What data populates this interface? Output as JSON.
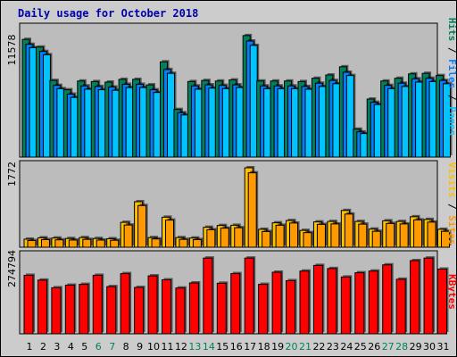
{
  "title": "Daily usage for October 2018",
  "colors": {
    "background": "#cccccc",
    "plot": "#bcbcbc",
    "title": "#0000aa",
    "hits": "#00805c",
    "files": "#0080ff",
    "pages": "#00c4ff",
    "visits": "#ff9900",
    "sites": "#ffc000",
    "kbytes": "#ff0000",
    "weekend_label": "#00805c",
    "weekday_label": "#000000"
  },
  "chart_data": [
    {
      "type": "bar",
      "panel": "hits_files_pages",
      "categories": [
        "1",
        "2",
        "3",
        "4",
        "5",
        "6",
        "7",
        "8",
        "9",
        "10",
        "11",
        "12",
        "13",
        "14",
        "15",
        "16",
        "17",
        "18",
        "19",
        "20",
        "21",
        "22",
        "23",
        "24",
        "25",
        "26",
        "27",
        "28",
        "29",
        "30",
        "31"
      ],
      "weekend_days": [
        "6",
        "7",
        "13",
        "14",
        "20",
        "21",
        "27",
        "28"
      ],
      "ymax_label": "11578",
      "ylim": [
        0,
        11578
      ],
      "labels": [
        "Pages",
        "Files",
        "Hits"
      ],
      "series": [
        {
          "name": "Hits",
          "values": [
            10750,
            10050,
            7000,
            6150,
            6950,
            6900,
            6850,
            7100,
            7100,
            6600,
            8700,
            4350,
            6900,
            7000,
            6950,
            7050,
            11100,
            6950,
            6950,
            6950,
            6900,
            7200,
            7500,
            8250,
            2550,
            5300,
            6950,
            7200,
            7600,
            7650,
            7450
          ]
        },
        {
          "name": "Files",
          "values": [
            10300,
            9650,
            6550,
            5750,
            6500,
            6450,
            6400,
            6650,
            6650,
            6150,
            8000,
            4050,
            6500,
            6600,
            6550,
            6600,
            10600,
            6500,
            6500,
            6500,
            6450,
            6750,
            7000,
            7750,
            2300,
            5000,
            6550,
            6750,
            7150,
            7200,
            7000
          ]
        },
        {
          "name": "Pages",
          "values": [
            10000,
            9350,
            6250,
            5450,
            6200,
            6150,
            6100,
            6350,
            6350,
            5900,
            7650,
            3850,
            6200,
            6300,
            6250,
            6350,
            10200,
            6250,
            6250,
            6250,
            6200,
            6450,
            6700,
            7450,
            2150,
            4800,
            6250,
            6450,
            6850,
            6900,
            6700
          ]
        }
      ]
    },
    {
      "type": "bar",
      "panel": "visits_sites",
      "categories": [
        "1",
        "2",
        "3",
        "4",
        "5",
        "6",
        "7",
        "8",
        "9",
        "10",
        "11",
        "12",
        "13",
        "14",
        "15",
        "16",
        "17",
        "18",
        "19",
        "20",
        "21",
        "22",
        "23",
        "24",
        "25",
        "26",
        "27",
        "28",
        "29",
        "30",
        "31"
      ],
      "ymax_label": "1772",
      "ylim": [
        0,
        1772
      ],
      "labels": [
        "Sites",
        "Visits"
      ],
      "series": [
        {
          "name": "Visits",
          "values": [
            180,
            210,
            205,
            195,
            215,
            195,
            190,
            555,
            1015,
            215,
            670,
            215,
            205,
            445,
            485,
            490,
            1772,
            400,
            545,
            595,
            375,
            565,
            575,
            820,
            575,
            405,
            590,
            575,
            680,
            620,
            400
          ]
        },
        {
          "name": "Sites",
          "values": [
            150,
            170,
            165,
            160,
            175,
            160,
            155,
            495,
            930,
            185,
            605,
            175,
            170,
            390,
            425,
            435,
            1660,
            350,
            490,
            540,
            325,
            510,
            520,
            740,
            515,
            355,
            530,
            520,
            610,
            560,
            355
          ]
        }
      ]
    },
    {
      "type": "bar",
      "panel": "kbytes",
      "categories": [
        "1",
        "2",
        "3",
        "4",
        "5",
        "6",
        "7",
        "8",
        "9",
        "10",
        "11",
        "12",
        "13",
        "14",
        "15",
        "16",
        "17",
        "18",
        "19",
        "20",
        "21",
        "22",
        "23",
        "24",
        "25",
        "26",
        "27",
        "28",
        "29",
        "30",
        "31"
      ],
      "ymax_label": "274794",
      "ylim": [
        0,
        274794
      ],
      "labels": [
        "KBytes"
      ],
      "series": [
        {
          "name": "KBytes",
          "values": [
            207000,
            190000,
            163000,
            172000,
            175000,
            207000,
            167000,
            213000,
            164000,
            205000,
            191000,
            162000,
            180000,
            268000,
            179000,
            213000,
            268000,
            175000,
            218000,
            188000,
            222000,
            242000,
            231000,
            201000,
            216000,
            222000,
            244000,
            193000,
            259000,
            268000,
            229000
          ]
        }
      ]
    }
  ]
}
